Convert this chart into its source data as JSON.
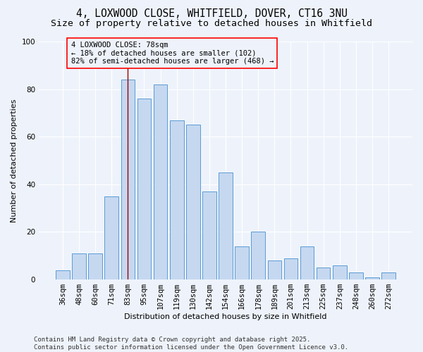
{
  "title_line1": "4, LOXWOOD CLOSE, WHITFIELD, DOVER, CT16 3NU",
  "title_line2": "Size of property relative to detached houses in Whitfield",
  "xlabel": "Distribution of detached houses by size in Whitfield",
  "ylabel": "Number of detached properties",
  "bar_labels": [
    "36sqm",
    "48sqm",
    "60sqm",
    "71sqm",
    "83sqm",
    "95sqm",
    "107sqm",
    "119sqm",
    "130sqm",
    "142sqm",
    "154sqm",
    "166sqm",
    "178sqm",
    "189sqm",
    "201sqm",
    "213sqm",
    "225sqm",
    "237sqm",
    "248sqm",
    "260sqm",
    "272sqm"
  ],
  "bar_values": [
    4,
    11,
    11,
    35,
    84,
    76,
    82,
    67,
    65,
    37,
    45,
    14,
    20,
    8,
    9,
    14,
    5,
    6,
    3,
    1,
    3
  ],
  "bar_color": "#c5d8f0",
  "bar_edge_color": "#5b9bd5",
  "background_color": "#eef3fb",
  "ylim": [
    0,
    100
  ],
  "yticks": [
    0,
    20,
    40,
    60,
    80,
    100
  ],
  "annotation_text": "4 LOXWOOD CLOSE: 78sqm\n← 18% of detached houses are smaller (102)\n82% of semi-detached houses are larger (468) →",
  "property_bar_index": 4,
  "vline_color": "#a00000",
  "footer": "Contains HM Land Registry data © Crown copyright and database right 2025.\nContains public sector information licensed under the Open Government Licence v3.0.",
  "title_fontsize": 10.5,
  "subtitle_fontsize": 9.5,
  "annotation_fontsize": 7.5,
  "footer_fontsize": 6.5,
  "axis_label_fontsize": 8,
  "tick_fontsize": 7.5
}
